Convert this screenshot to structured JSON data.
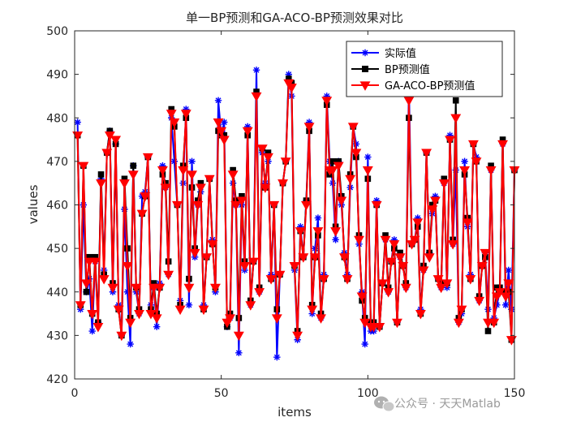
{
  "chart_data": {
    "type": "line",
    "title": "单一BP预测和GA-ACO-BP预测效果对比",
    "xlabel": "items",
    "ylabel": "values",
    "xlim": [
      0,
      150
    ],
    "ylim": [
      420,
      500
    ],
    "xticks": [
      0,
      50,
      100,
      150
    ],
    "yticks": [
      420,
      430,
      440,
      450,
      460,
      470,
      480,
      490,
      500
    ],
    "legend_position": "top-right",
    "x": [
      1,
      2,
      3,
      4,
      5,
      6,
      7,
      8,
      9,
      10,
      11,
      12,
      13,
      14,
      15,
      16,
      17,
      18,
      19,
      20,
      21,
      22,
      23,
      24,
      25,
      26,
      27,
      28,
      29,
      30,
      31,
      32,
      33,
      34,
      35,
      36,
      37,
      38,
      39,
      40,
      41,
      42,
      43,
      44,
      45,
      46,
      47,
      48,
      49,
      50,
      51,
      52,
      53,
      54,
      55,
      56,
      57,
      58,
      59,
      60,
      61,
      62,
      63,
      64,
      65,
      66,
      67,
      68,
      69,
      70,
      71,
      72,
      73,
      74,
      75,
      76,
      77,
      78,
      79,
      80,
      81,
      82,
      83,
      84,
      85,
      86,
      87,
      88,
      89,
      90,
      91,
      92,
      93,
      94,
      95,
      96,
      97,
      98,
      99,
      100,
      101,
      102,
      103,
      104,
      105,
      106,
      107,
      108,
      109,
      110,
      111,
      112,
      113,
      114,
      115,
      116,
      117,
      118,
      119,
      120,
      121,
      122,
      123,
      124,
      125,
      126,
      127,
      128,
      129,
      130,
      131,
      132,
      133,
      134,
      135,
      136,
      137,
      138,
      139,
      140,
      141,
      142,
      143,
      144,
      145,
      146,
      147,
      148,
      149,
      150
    ],
    "series": [
      {
        "name": "实际值",
        "color": "#0000ff",
        "marker": "star",
        "values": [
          479,
          436,
          460,
          440,
          443,
          431,
          447,
          433,
          466,
          445,
          472,
          477,
          440,
          474,
          437,
          430,
          459,
          440,
          428,
          469,
          440,
          435,
          462,
          463,
          471,
          437,
          441,
          432,
          442,
          469,
          464,
          444,
          480,
          470,
          460,
          438,
          465,
          482,
          437,
          470,
          448,
          460,
          463,
          437,
          448,
          466,
          452,
          440,
          484,
          476,
          479,
          432,
          434,
          465,
          460,
          426,
          460,
          445,
          478,
          437,
          447,
          491,
          440,
          472,
          465,
          470,
          444,
          460,
          425,
          444,
          465,
          470,
          490,
          485,
          445,
          429,
          455,
          448,
          461,
          479,
          435,
          450,
          457,
          434,
          444,
          485,
          470,
          465,
          452,
          470,
          460,
          449,
          444,
          464,
          478,
          474,
          451,
          440,
          428,
          471,
          431,
          431,
          461,
          432,
          442,
          452,
          440,
          447,
          452,
          433,
          448,
          446,
          441,
          488,
          451,
          452,
          457,
          436,
          445,
          472,
          449,
          458,
          462,
          443,
          441,
          465,
          441,
          476,
          451,
          468,
          433,
          435,
          470,
          455,
          444,
          474,
          471,
          438,
          446,
          449,
          436,
          468,
          434,
          437,
          440,
          474,
          437,
          445,
          436,
          468
        ]
      },
      {
        "name": "BP预测值",
        "color": "#000000",
        "marker": "square",
        "values": [
          476,
          437,
          469,
          440,
          448,
          435,
          448,
          433,
          467,
          444,
          472,
          477,
          442,
          474,
          436,
          430,
          466,
          450,
          434,
          469,
          441,
          436,
          458,
          462,
          471,
          436,
          442,
          435,
          441,
          467,
          465,
          447,
          482,
          478,
          460,
          437,
          469,
          480,
          443,
          464,
          450,
          461,
          465,
          436,
          448,
          466,
          451,
          441,
          477,
          476,
          476,
          432,
          435,
          468,
          461,
          434,
          462,
          447,
          476,
          438,
          447,
          486,
          441,
          473,
          464,
          472,
          443,
          460,
          436,
          444,
          465,
          470,
          489,
          488,
          446,
          431,
          454,
          448,
          461,
          477,
          437,
          448,
          453,
          435,
          443,
          483,
          467,
          470,
          455,
          470,
          462,
          448,
          443,
          467,
          478,
          471,
          453,
          438,
          434,
          466,
          433,
          433,
          460,
          432,
          442,
          453,
          441,
          447,
          450,
          433,
          449,
          446,
          442,
          480,
          451,
          452,
          455,
          435,
          446,
          472,
          449,
          460,
          461,
          443,
          442,
          466,
          442,
          475,
          452,
          484,
          434,
          436,
          467,
          457,
          443,
          474,
          470,
          439,
          446,
          448,
          431,
          469,
          433,
          441,
          441,
          475,
          440,
          440,
          429,
          468
        ]
      },
      {
        "name": "GA-ACO-BP预测值",
        "color": "#ff0000",
        "marker": "triangle-down",
        "values": [
          476,
          437,
          469,
          442,
          447,
          435,
          447,
          432,
          465,
          443,
          472,
          476,
          441,
          475,
          436,
          430,
          465,
          446,
          433,
          467,
          441,
          435,
          458,
          462,
          471,
          435,
          441,
          434,
          441,
          468,
          464,
          444,
          481,
          479,
          460,
          436,
          468,
          481,
          441,
          467,
          449,
          460,
          464,
          436,
          448,
          466,
          451,
          441,
          479,
          477,
          475,
          433,
          434,
          467,
          460,
          430,
          461,
          446,
          477,
          437,
          447,
          485,
          440,
          473,
          464,
          471,
          443,
          460,
          434,
          444,
          465,
          470,
          488,
          487,
          446,
          430,
          454,
          448,
          460,
          478,
          436,
          448,
          454,
          434,
          443,
          484,
          468,
          468,
          454,
          469,
          461,
          448,
          443,
          466,
          478,
          472,
          452,
          439,
          433,
          468,
          432,
          432,
          460,
          432,
          442,
          452,
          440,
          447,
          451,
          433,
          448,
          446,
          441,
          484,
          451,
          452,
          456,
          435,
          445,
          472,
          448,
          459,
          461,
          443,
          441,
          465,
          442,
          475,
          451,
          480,
          433,
          436,
          468,
          456,
          443,
          474,
          470,
          438,
          446,
          449,
          433,
          468,
          433,
          439,
          440,
          474,
          439,
          442,
          429,
          468
        ]
      }
    ]
  },
  "watermark": {
    "icon": "wechat-icon",
    "text": "公众号 · 天天Matlab"
  }
}
